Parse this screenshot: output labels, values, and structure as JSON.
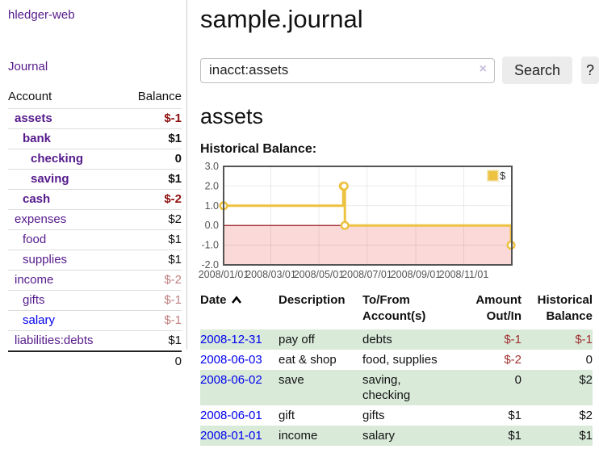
{
  "app": {
    "brand": "hledger-web",
    "nav_journal": "Journal"
  },
  "sidebar_table": {
    "headers": {
      "account": "Account",
      "balance": "Balance"
    },
    "rows": [
      {
        "account": "assets",
        "balance": "$-1",
        "depth": 0,
        "emph": true,
        "link": "purple",
        "bal_class": "neg-strong"
      },
      {
        "account": "bank",
        "balance": "$1",
        "depth": 1,
        "emph": true,
        "link": "purple",
        "bal_class": ""
      },
      {
        "account": "checking",
        "balance": "0",
        "depth": 2,
        "emph": true,
        "link": "purple",
        "bal_class": ""
      },
      {
        "account": "saving",
        "balance": "$1",
        "depth": 2,
        "emph": true,
        "link": "purple",
        "bal_class": ""
      },
      {
        "account": "cash",
        "balance": "$-2",
        "depth": 1,
        "emph": true,
        "link": "purple",
        "bal_class": "neg-strong"
      },
      {
        "account": "expenses",
        "balance": "$2",
        "depth": 0,
        "emph": false,
        "link": "purple",
        "bal_class": ""
      },
      {
        "account": "food",
        "balance": "$1",
        "depth": 1,
        "emph": false,
        "link": "purple",
        "bal_class": ""
      },
      {
        "account": "supplies",
        "balance": "$1",
        "depth": 1,
        "emph": false,
        "link": "purple",
        "bal_class": ""
      },
      {
        "account": "income",
        "balance": "$-2",
        "depth": 0,
        "emph": false,
        "link": "purple",
        "bal_class": "neg-light"
      },
      {
        "account": "gifts",
        "balance": "$-1",
        "depth": 1,
        "emph": false,
        "link": "purple",
        "bal_class": "neg-light"
      },
      {
        "account": "salary",
        "balance": "$-1",
        "depth": 1,
        "emph": false,
        "link": "blue",
        "bal_class": "neg-light"
      },
      {
        "account": "liabilities:debts",
        "balance": "$1",
        "depth": 0,
        "emph": false,
        "link": "purple",
        "bal_class": ""
      }
    ],
    "total": "0"
  },
  "main": {
    "title": "sample.journal",
    "account_title": "assets",
    "chart_title": "Historical Balance:"
  },
  "search": {
    "value": "inacct:assets",
    "clear": "×",
    "search_label": "Search",
    "help_label": "?"
  },
  "chart_data": {
    "type": "line",
    "step": true,
    "title": "Historical Balance:",
    "series": [
      {
        "name": "$",
        "color": "#EDC240",
        "points": [
          [
            "2008-01-01",
            1
          ],
          [
            "2008-06-01",
            2
          ],
          [
            "2008-06-02",
            2
          ],
          [
            "2008-06-03",
            0
          ],
          [
            "2008-12-31",
            -1
          ]
        ]
      }
    ],
    "xlim": [
      "2008-01-01",
      "2009-01-01"
    ],
    "ylim": [
      -2,
      3
    ],
    "y_ticks": [
      3.0,
      2.0,
      1.0,
      0.0,
      -1.0,
      -2.0
    ],
    "x_tick_dates": [
      "2008-01-01",
      "2008-03-01",
      "2008-05-01",
      "2008-07-01",
      "2008-09-01",
      "2008-11-01"
    ],
    "x_tick_labels": [
      "2008/01/01",
      "2008/03/01",
      "2008/05/01",
      "2008/07/01",
      "2008/09/01",
      "2008/11/01"
    ],
    "grid": true,
    "legend_position": "top-right",
    "legend_label": "$",
    "negative_fill": "#fcd9d9",
    "zero_line_color": "#8b0000",
    "border_color": "#545454",
    "tick_color": "#545454"
  },
  "register": {
    "headers": {
      "date": "Date",
      "description": "Description",
      "accounts": "To/From Account(s)",
      "amount": "Amount Out/In",
      "balance": "Historical Balance"
    },
    "rows": [
      {
        "date": "2008-12-31",
        "description": "pay off",
        "accounts": "debts",
        "amount": "$-1",
        "amount_neg": true,
        "balance": "$-1",
        "balance_neg": true
      },
      {
        "date": "2008-06-03",
        "description": "eat & shop",
        "accounts": "food, supplies",
        "amount": "$-2",
        "amount_neg": true,
        "balance": "0",
        "balance_neg": false
      },
      {
        "date": "2008-06-02",
        "description": "save",
        "accounts": "saving,\nchecking",
        "amount": "0",
        "amount_neg": false,
        "balance": "$2",
        "balance_neg": false
      },
      {
        "date": "2008-06-01",
        "description": "gift",
        "accounts": "gifts",
        "amount": "$1",
        "amount_neg": false,
        "balance": "$2",
        "balance_neg": false
      },
      {
        "date": "2008-01-01",
        "description": "income",
        "accounts": "salary",
        "amount": "$1",
        "amount_neg": false,
        "balance": "$1",
        "balance_neg": false
      }
    ]
  }
}
